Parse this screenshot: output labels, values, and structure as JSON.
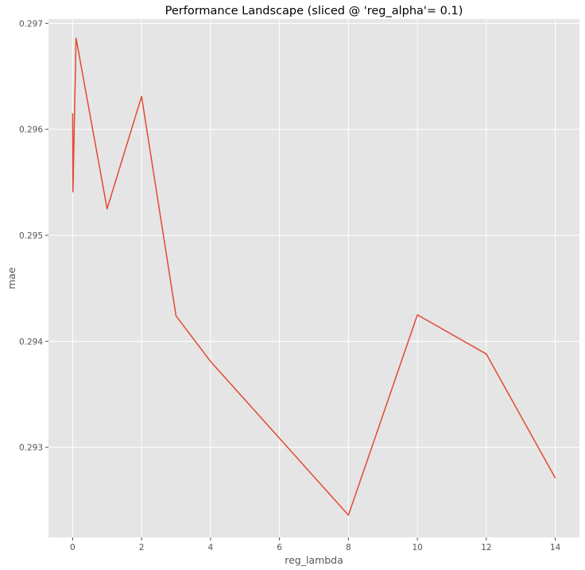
{
  "chart_data": {
    "type": "line",
    "title": "Performance Landscape (sliced @ 'reg_alpha'= 0.1)",
    "xlabel": "reg_lambda",
    "ylabel": "mae",
    "xlim": [
      -0.7,
      14.7
    ],
    "ylim": [
      0.29215,
      0.29704
    ],
    "x_ticks": [
      0,
      2,
      4,
      6,
      8,
      10,
      12,
      14
    ],
    "y_ticks": [
      0.293,
      0.294,
      0.295,
      0.296,
      0.297
    ],
    "x_tick_labels": [
      "0",
      "2",
      "4",
      "6",
      "8",
      "10",
      "12",
      "14"
    ],
    "y_tick_labels": [
      "0.293",
      "0.294",
      "0.295",
      "0.296",
      "0.297"
    ],
    "grid": true,
    "style": "ggplot",
    "colors": {
      "line": "#e24a33",
      "background": "#e5e5e5",
      "grid": "#ffffff"
    },
    "series": [
      {
        "x": [
          0.001,
          0.01,
          0.1,
          1,
          2,
          3,
          4,
          8,
          10,
          12,
          14
        ],
        "y": [
          0.29615,
          0.29541,
          0.29686,
          0.29525,
          0.29631,
          0.29424,
          0.29381,
          0.29236,
          0.29425,
          0.29388,
          0.29271
        ]
      }
    ]
  }
}
